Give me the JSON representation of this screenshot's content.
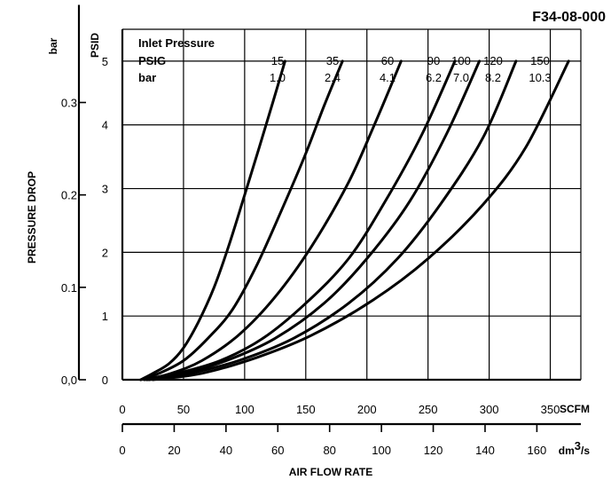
{
  "chart_data": {
    "type": "line",
    "title": "F34-08-000",
    "xlabel": "AIR FLOW RATE",
    "ylabel": "PRESSURE DROP",
    "x_primary": {
      "unit": "SCFM",
      "range": [
        0,
        375
      ],
      "ticks": [
        0,
        50,
        100,
        150,
        200,
        250,
        300,
        350
      ],
      "tick_labels": [
        "0",
        "50",
        "100",
        "150",
        "200",
        "250",
        "300",
        "350"
      ]
    },
    "x_secondary": {
      "unit_base": "dm",
      "unit_exp": "3",
      "unit_tail": "/s",
      "ticks": [
        0,
        20,
        40,
        60,
        80,
        100,
        120,
        140,
        160
      ],
      "tick_labels": [
        "0",
        "20",
        "40",
        "60",
        "80",
        "100",
        "120",
        "140",
        "160"
      ]
    },
    "y_primary": {
      "unit": "PSID",
      "range": [
        0,
        5.5
      ],
      "ticks": [
        0,
        1,
        2,
        3,
        4,
        5
      ],
      "tick_labels": [
        "0",
        "1",
        "2",
        "3",
        "4",
        "5"
      ]
    },
    "y_secondary": {
      "unit": "bar",
      "ticks": [
        0,
        0.1,
        0.2,
        0.3
      ],
      "tick_labels": [
        "0,0",
        "0.1",
        "0.2",
        "0.3"
      ]
    },
    "grid": true,
    "legend": {
      "title": "Inlet Pressure",
      "row1_label": "PSIG",
      "row2_label": "bar"
    },
    "series": [
      {
        "psig": "15",
        "bar": "1.0",
        "x": [
          15,
          25,
          38,
          50,
          62,
          75,
          87,
          100,
          112,
          123,
          133
        ],
        "y": [
          0,
          0.1,
          0.25,
          0.5,
          0.9,
          1.45,
          2.1,
          2.9,
          3.65,
          4.35,
          5
        ]
      },
      {
        "psig": "35",
        "bar": "2.4",
        "x": [
          15,
          30,
          50,
          70,
          90,
          110,
          130,
          150,
          165,
          180
        ],
        "y": [
          0,
          0.1,
          0.3,
          0.65,
          1.1,
          1.8,
          2.65,
          3.55,
          4.3,
          5
        ]
      },
      {
        "psig": "60",
        "bar": "4.1",
        "x": [
          18,
          40,
          65,
          95,
          125,
          155,
          185,
          205,
          228
        ],
        "y": [
          0,
          0.1,
          0.3,
          0.7,
          1.3,
          2.1,
          3.1,
          3.95,
          5
        ]
      },
      {
        "psig": "90",
        "bar": "6.2",
        "x": [
          20,
          45,
          80,
          115,
          150,
          185,
          215,
          245,
          272
        ],
        "y": [
          0,
          0.1,
          0.3,
          0.65,
          1.2,
          1.9,
          2.8,
          3.85,
          5
        ]
      },
      {
        "psig": "100",
        "bar": "7.0",
        "x": [
          20,
          50,
          85,
          125,
          165,
          200,
          235,
          265,
          292
        ],
        "y": [
          0,
          0.1,
          0.3,
          0.65,
          1.2,
          1.9,
          2.8,
          3.85,
          5
        ]
      },
      {
        "psig": "120",
        "bar": "8.2",
        "x": [
          22,
          55,
          95,
          140,
          185,
          225,
          260,
          295,
          322
        ],
        "y": [
          0,
          0.1,
          0.3,
          0.65,
          1.2,
          1.9,
          2.75,
          3.8,
          5
        ]
      },
      {
        "psig": "150",
        "bar": "10.3",
        "x": [
          25,
          65,
          110,
          155,
          205,
          250,
          295,
          330,
          365
        ],
        "y": [
          0,
          0.1,
          0.35,
          0.7,
          1.25,
          1.9,
          2.75,
          3.65,
          5
        ]
      }
    ]
  }
}
